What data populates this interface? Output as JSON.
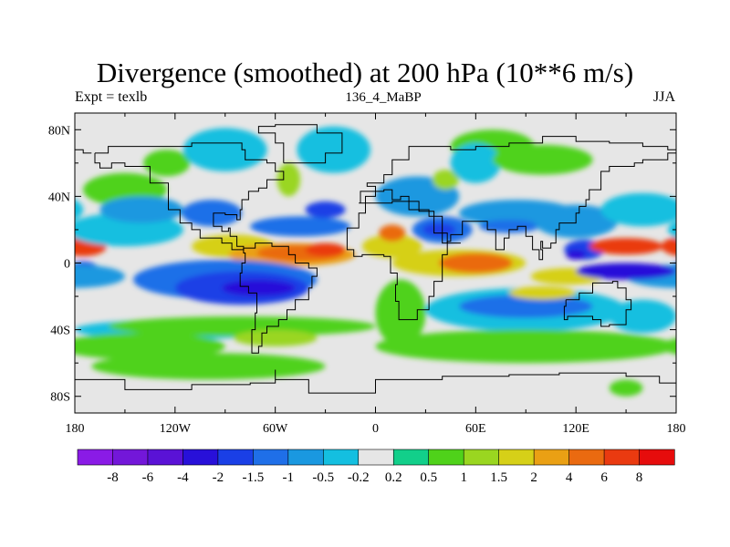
{
  "title": "Divergence (smoothed) at 200 hPa (10**6 m/s)",
  "subtitle_left": "Expt = texlb",
  "subtitle_center": "136_4_MaBP",
  "subtitle_right": "JJA",
  "chart_data": {
    "type": "heatmap",
    "title": "Divergence (smoothed) at 200 hPa (10**6 m/s)",
    "field": "divergence (smoothed), 200 hPa",
    "units": "10**6 m/s",
    "x_axis": {
      "range": [
        -180,
        180
      ],
      "ticks": [
        -180,
        -120,
        -60,
        0,
        60,
        120,
        180
      ],
      "tick_labels": [
        "180",
        "120W",
        "60W",
        "0",
        "60E",
        "120E",
        "180"
      ]
    },
    "y_axis": {
      "range": [
        -90,
        90
      ],
      "ticks": [
        80,
        40,
        0,
        -40,
        -80
      ],
      "tick_labels": [
        "80N",
        "40N",
        "0",
        "40S",
        "80S"
      ]
    },
    "colorbar": {
      "levels": [
        -8,
        -6,
        -4,
        -2,
        -1.5,
        -1,
        -0.5,
        -0.2,
        0.2,
        0.5,
        1,
        1.5,
        2,
        4,
        6,
        8
      ],
      "labels": [
        "-8",
        "-6",
        "-4",
        "-2",
        "-1.5",
        "-1",
        "-0.5",
        "-0.2",
        "0.2",
        "0.5",
        "1",
        "1.5",
        "2",
        "4",
        "6",
        "8"
      ],
      "colors": [
        "#8a1be6",
        "#7317d9",
        "#5a12d6",
        "#2810d9",
        "#1a3fe6",
        "#1f6fe8",
        "#1a98e0",
        "#14bfe0",
        "#e6e6e6",
        "#12cf8a",
        "#4fd21a",
        "#9ad620",
        "#d6d018",
        "#eaa014",
        "#ea6a10",
        "#ea3a10",
        "#e60c0c"
      ]
    },
    "features": [
      {
        "lon": -175,
        "lat": 10,
        "value": 6,
        "rx": 14,
        "ry": 6
      },
      {
        "lon": -175,
        "lat": -5,
        "value": -2,
        "rx": 10,
        "ry": 6
      },
      {
        "lon": -180,
        "lat": -8,
        "value": -1,
        "rx": 30,
        "ry": 7
      },
      {
        "lon": -150,
        "lat": 20,
        "value": -0.5,
        "rx": 35,
        "ry": 10
      },
      {
        "lon": -150,
        "lat": 44,
        "value": 0.5,
        "rx": 25,
        "ry": 10
      },
      {
        "lon": -140,
        "lat": 32,
        "value": -1,
        "rx": 25,
        "ry": 8
      },
      {
        "lon": -125,
        "lat": 60,
        "value": 0.5,
        "rx": 14,
        "ry": 8
      },
      {
        "lon": -98,
        "lat": 30,
        "value": -1.5,
        "rx": 18,
        "ry": 8
      },
      {
        "lon": -85,
        "lat": 10,
        "value": 1.5,
        "rx": 25,
        "ry": 7
      },
      {
        "lon": -90,
        "lat": 68,
        "value": -0.5,
        "rx": 25,
        "ry": 13
      },
      {
        "lon": -52,
        "lat": 50,
        "value": 1,
        "rx": 7,
        "ry": 10
      },
      {
        "lon": -50,
        "lat": 5,
        "value": 2,
        "rx": 38,
        "ry": 7
      },
      {
        "lon": -45,
        "lat": 6,
        "value": 4,
        "rx": 26,
        "ry": 5
      },
      {
        "lon": -30,
        "lat": 8,
        "value": 6,
        "rx": 12,
        "ry": 4
      },
      {
        "lon": -45,
        "lat": 22,
        "value": -1.5,
        "rx": 30,
        "ry": 6
      },
      {
        "lon": -25,
        "lat": 68,
        "value": -0.5,
        "rx": 22,
        "ry": 14
      },
      {
        "lon": -30,
        "lat": 32,
        "value": -2,
        "rx": 12,
        "ry": 5
      },
      {
        "lon": -90,
        "lat": -10,
        "value": -1.5,
        "rx": 55,
        "ry": 12
      },
      {
        "lon": -80,
        "lat": -15,
        "value": -2,
        "rx": 40,
        "ry": 10
      },
      {
        "lon": -70,
        "lat": -15,
        "value": -4,
        "rx": 22,
        "ry": 5
      },
      {
        "lon": -120,
        "lat": -40,
        "value": -0.5,
        "rx": 60,
        "ry": 6
      },
      {
        "lon": -80,
        "lat": -38,
        "value": 0.5,
        "rx": 80,
        "ry": 6
      },
      {
        "lon": -140,
        "lat": -50,
        "value": 0.5,
        "rx": 50,
        "ry": 8
      },
      {
        "lon": -100,
        "lat": -62,
        "value": 0.5,
        "rx": 70,
        "ry": 8
      },
      {
        "lon": -60,
        "lat": -45,
        "value": 1,
        "rx": 25,
        "ry": 5
      },
      {
        "lon": 10,
        "lat": 10,
        "value": 1.5,
        "rx": 18,
        "ry": 7
      },
      {
        "lon": 10,
        "lat": 18,
        "value": 4,
        "rx": 8,
        "ry": 5
      },
      {
        "lon": 15,
        "lat": -30,
        "value": 0.5,
        "rx": 15,
        "ry": 20
      },
      {
        "lon": 25,
        "lat": 40,
        "value": -1,
        "rx": 25,
        "ry": 12
      },
      {
        "lon": 42,
        "lat": 50,
        "value": 1,
        "rx": 8,
        "ry": 6
      },
      {
        "lon": 40,
        "lat": 20,
        "value": -1.5,
        "rx": 18,
        "ry": 8
      },
      {
        "lon": 38,
        "lat": 20,
        "value": -2,
        "rx": 10,
        "ry": 4
      },
      {
        "lon": 50,
        "lat": 0,
        "value": 1.5,
        "rx": 40,
        "ry": 8
      },
      {
        "lon": 60,
        "lat": 0,
        "value": 4,
        "rx": 22,
        "ry": 6
      },
      {
        "lon": 85,
        "lat": 30,
        "value": -1,
        "rx": 35,
        "ry": 8
      },
      {
        "lon": 80,
        "lat": 22,
        "value": -1.5,
        "rx": 18,
        "ry": 4
      },
      {
        "lon": 70,
        "lat": 70,
        "value": 0.5,
        "rx": 25,
        "ry": 10
      },
      {
        "lon": 60,
        "lat": 60,
        "value": -0.5,
        "rx": 15,
        "ry": 12
      },
      {
        "lon": 100,
        "lat": 62,
        "value": 0.5,
        "rx": 30,
        "ry": 9
      },
      {
        "lon": 125,
        "lat": 8,
        "value": -2,
        "rx": 12,
        "ry": 6
      },
      {
        "lon": 120,
        "lat": 5,
        "value": -4,
        "rx": 6,
        "ry": 3
      },
      {
        "lon": 115,
        "lat": -8,
        "value": 1.5,
        "rx": 22,
        "ry": 5
      },
      {
        "lon": 120,
        "lat": 25,
        "value": -1,
        "rx": 25,
        "ry": 10
      },
      {
        "lon": 90,
        "lat": -28,
        "value": -0.5,
        "rx": 60,
        "ry": 13
      },
      {
        "lon": 90,
        "lat": -26,
        "value": -1.5,
        "rx": 40,
        "ry": 7
      },
      {
        "lon": 90,
        "lat": -50,
        "value": 0.5,
        "rx": 90,
        "ry": 10
      },
      {
        "lon": 100,
        "lat": -18,
        "value": 1.5,
        "rx": 20,
        "ry": 4
      },
      {
        "lon": 150,
        "lat": 10,
        "value": 6,
        "rx": 22,
        "ry": 5
      },
      {
        "lon": 150,
        "lat": -5,
        "value": -4,
        "rx": 30,
        "ry": 5
      },
      {
        "lon": 160,
        "lat": 32,
        "value": -0.5,
        "rx": 25,
        "ry": 10
      },
      {
        "lon": 160,
        "lat": -32,
        "value": -0.5,
        "rx": 20,
        "ry": 10
      },
      {
        "lon": 150,
        "lat": -75,
        "value": 0.5,
        "rx": 10,
        "ry": 5
      }
    ]
  }
}
